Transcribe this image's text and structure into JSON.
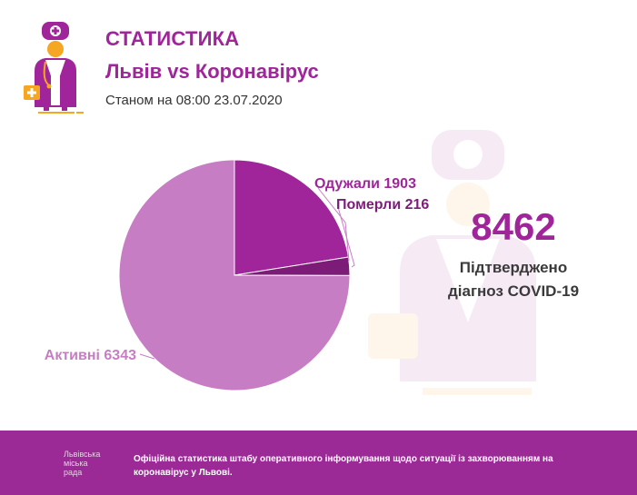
{
  "header": {
    "title": "СТАТИСТИКА",
    "subtitle": "Львів vs Коронавірус",
    "as_of": "Станом на 08:00 23.07.2020"
  },
  "summary": {
    "total": "8462",
    "total_caption_line1": "Підтверджено",
    "total_caption_line2": "діагноз COVID-19"
  },
  "footer": {
    "city_line1": "Львівська",
    "city_line2": "міська",
    "city_line3": "рада",
    "text": "Офіційна статистика штабу оперативного інформування щодо ситуації із захворюванням на коронавірус у Львові."
  },
  "colors": {
    "accent": "#a0259a",
    "recovered": "#a0259a",
    "deaths": "#7c1c78",
    "active": "#c77dc4",
    "footer_bg": "#9b2a96"
  },
  "chart_data": {
    "type": "pie",
    "categories": [
      "Одужали",
      "Померли",
      "Активні"
    ],
    "values": [
      1903,
      216,
      6343
    ],
    "labels": [
      "Одужали 1903",
      "Померли 216",
      "Активні 6343"
    ]
  }
}
